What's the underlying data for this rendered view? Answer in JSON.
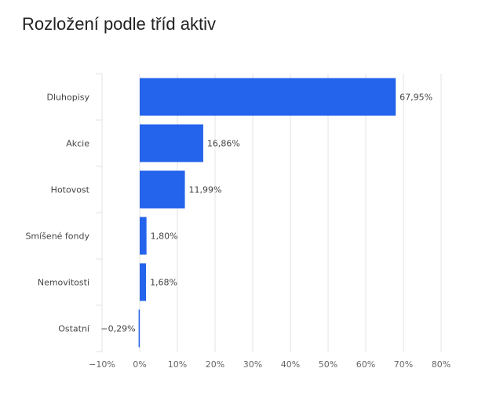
{
  "title": "Rozložení podle tříd aktiv",
  "chart_data": {
    "type": "bar",
    "orientation": "horizontal",
    "title": "Rozložení podle tříd aktiv",
    "categories": [
      "Dluhopisy",
      "Akcie",
      "Hotovost",
      "Smíšené fondy",
      "Nemovitosti",
      "Ostatní"
    ],
    "values": [
      67.95,
      16.86,
      11.99,
      1.8,
      1.68,
      -0.29
    ],
    "value_labels": [
      "67,95%",
      "16,86%",
      "11,99%",
      "1,80%",
      "1,68%",
      "−0,29%"
    ],
    "xlim": [
      -10,
      80
    ],
    "x_ticks": [
      -10,
      0,
      10,
      20,
      30,
      40,
      50,
      60,
      70,
      80
    ],
    "x_tick_labels": [
      "−10%",
      "0%",
      "10%",
      "20%",
      "30%",
      "40%",
      "50%",
      "60%",
      "70%",
      "80%"
    ],
    "xlabel": "",
    "ylabel": "",
    "grid": "vertical",
    "legend": "none",
    "bar_color": "#2463EB"
  }
}
